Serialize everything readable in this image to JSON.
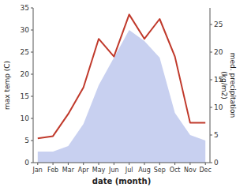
{
  "chart_data": {
    "type": "line",
    "categories": [
      "Jan",
      "Feb",
      "Mar",
      "Apr",
      "May",
      "Jun",
      "Jul",
      "Aug",
      "Sep",
      "Oct",
      "Nov",
      "Dec"
    ],
    "series": [
      {
        "type": "area",
        "axis": "y2",
        "color": "#c8d0f0",
        "values": [
          2.0,
          2.0,
          3.0,
          7.0,
          14.0,
          19.0,
          24.0,
          22.0,
          19.0,
          9.0,
          5.0,
          4.0
        ]
      },
      {
        "type": "line",
        "color": "#c0392b",
        "values": [
          5.5,
          6.0,
          11.0,
          17.0,
          28.0,
          24.0,
          33.5,
          28.0,
          32.5,
          24.0,
          9.0,
          9.0
        ]
      }
    ],
    "xlabel": "date (month)",
    "ylabel": "max temp (C)",
    "y2label": "med. precipitation\n(kg/m2)",
    "ylim": [
      0,
      35
    ],
    "yticks": [
      0,
      5,
      10,
      15,
      20,
      25,
      30,
      35
    ],
    "y2lim": [
      0,
      28
    ],
    "y2ticks": [
      0,
      5,
      10,
      15,
      20,
      25
    ],
    "grid": false
  }
}
